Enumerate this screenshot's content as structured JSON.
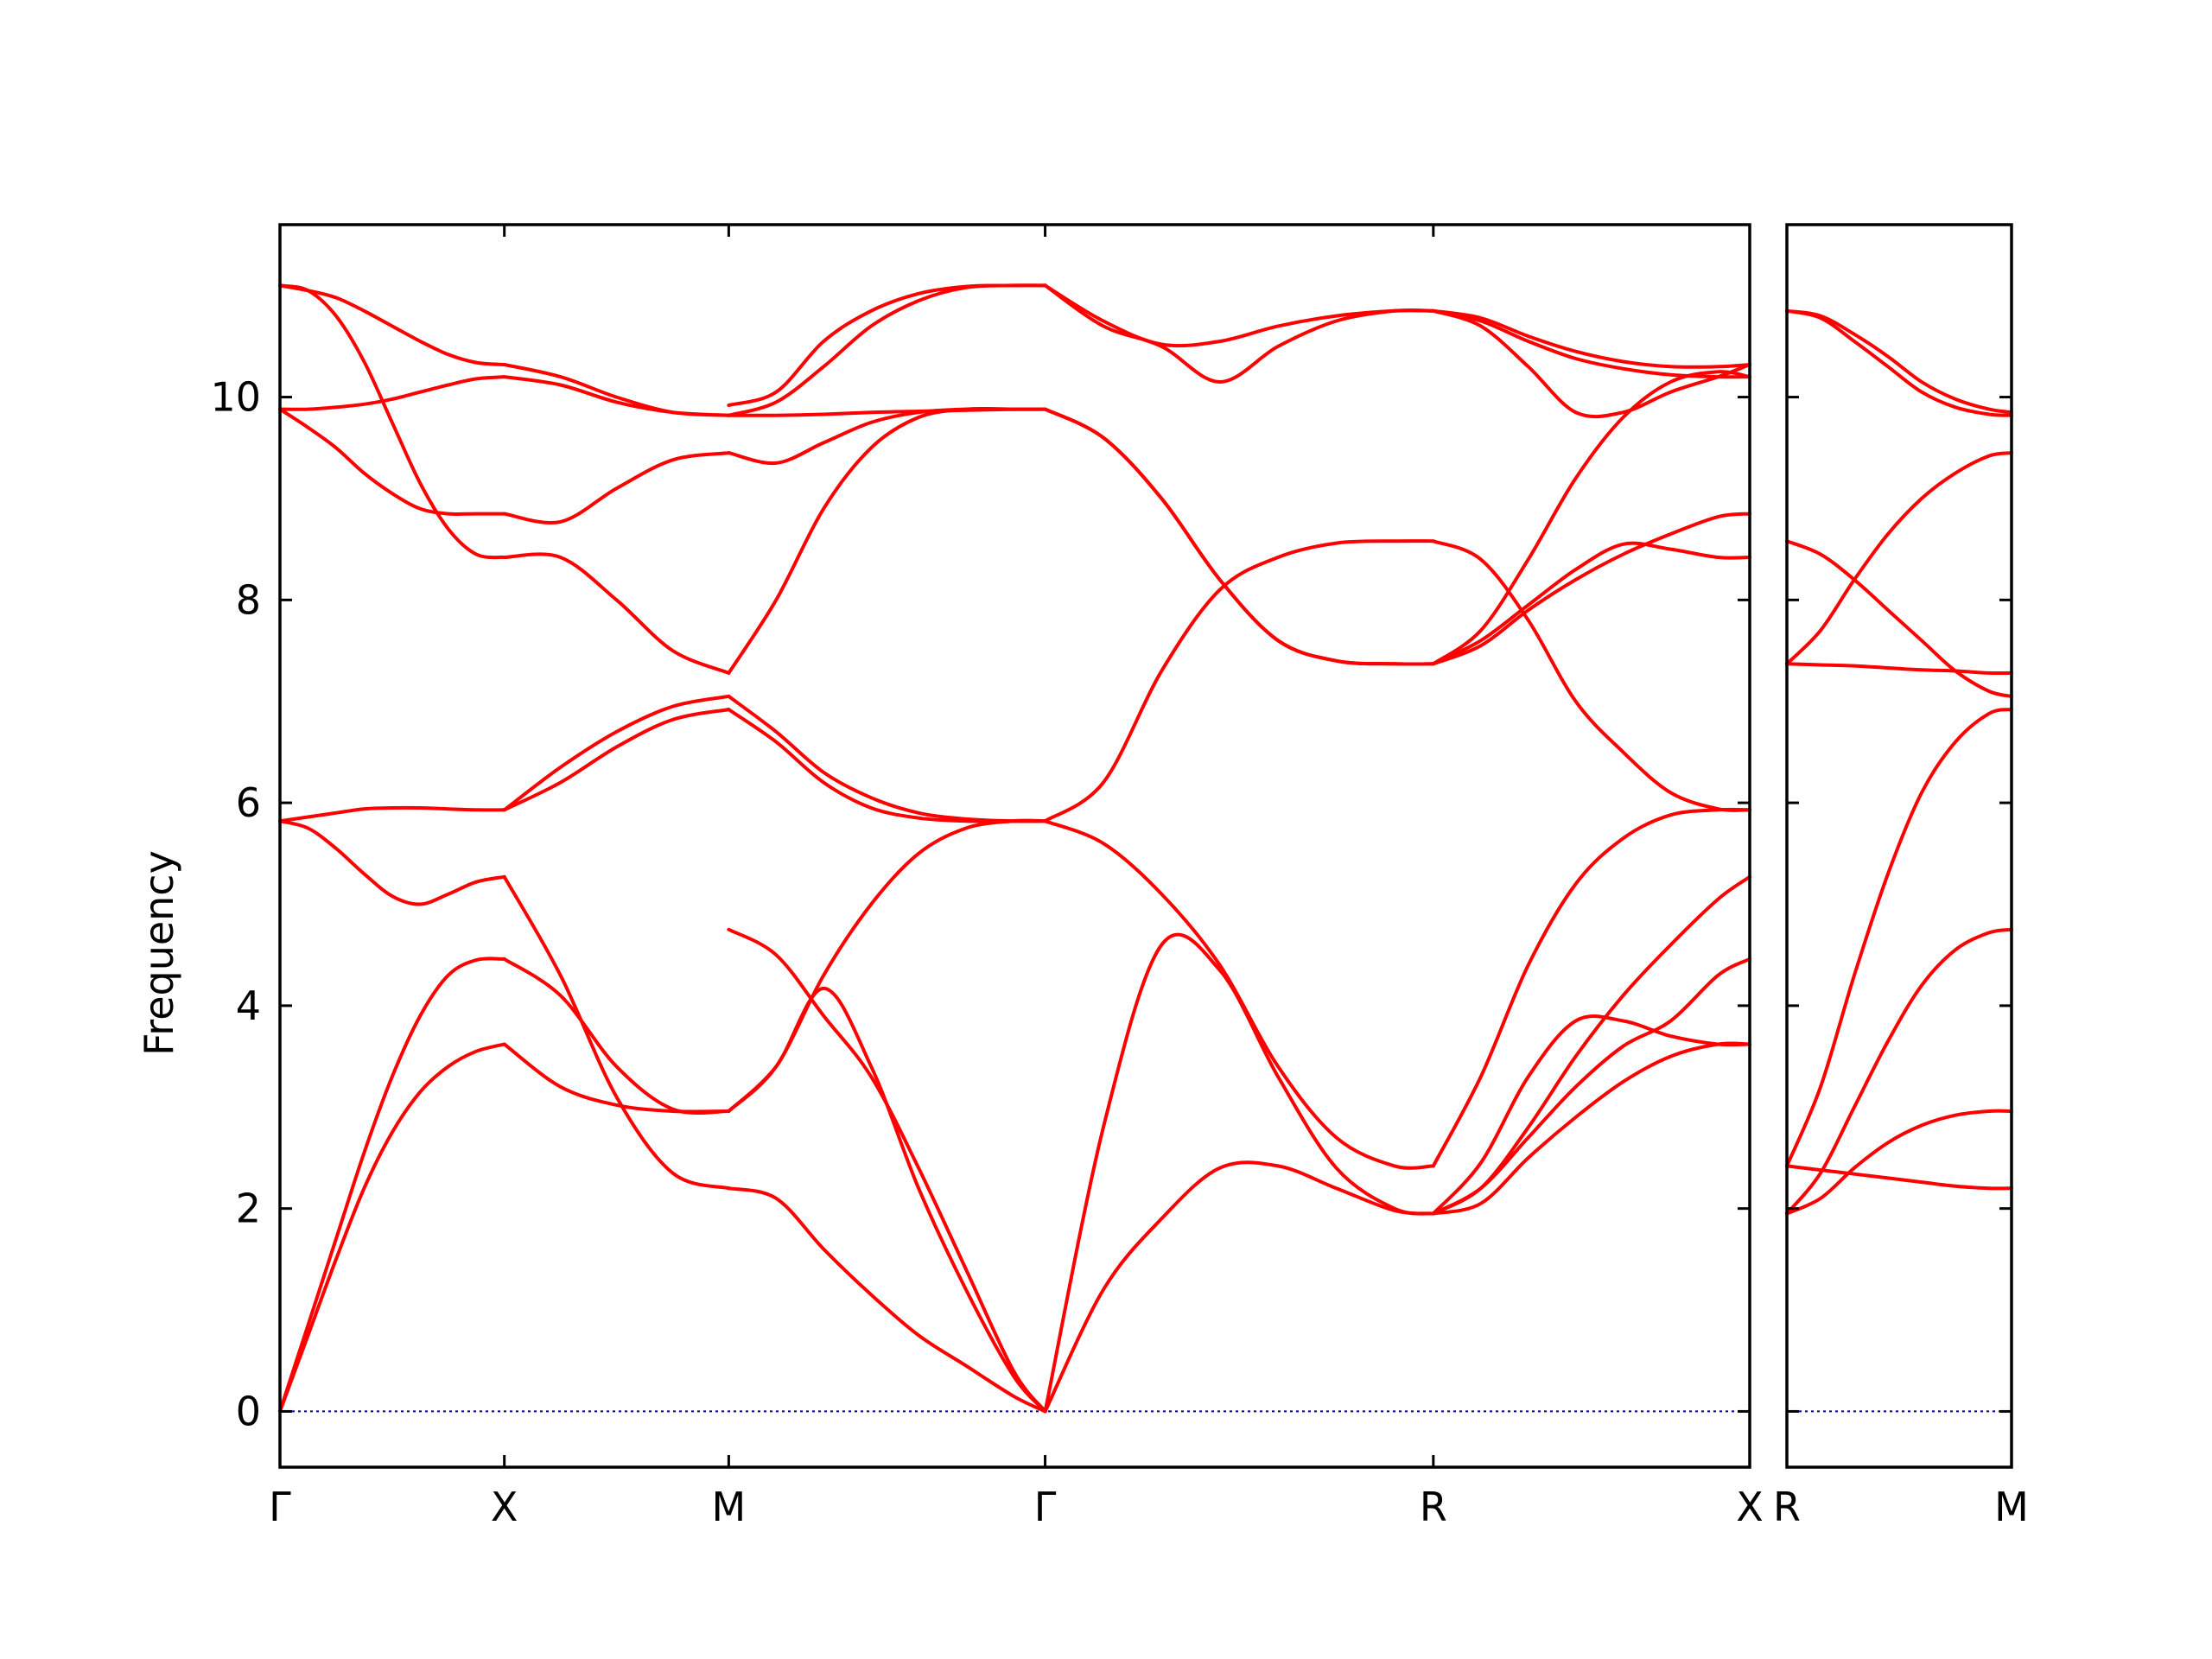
{
  "chart_data": {
    "type": "line",
    "ylabel": "Frequency",
    "ylim": [
      -0.55,
      11.7
    ],
    "yticks": [
      0,
      2,
      4,
      6,
      8,
      10
    ],
    "grid": false,
    "band_color": "#ff0000",
    "zero_line_color": "#00008b",
    "panels": [
      {
        "path_labels": [
          "Γ",
          "X",
          "M",
          "Γ",
          "R",
          "X"
        ],
        "segments": [
          {
            "from": "Γ",
            "to": "X",
            "x": [
              0,
              0.125,
              0.25,
              0.375,
              0.5,
              0.625,
              0.75,
              0.875,
              1
            ],
            "bands": [
              [
                0.0,
                0.75,
                1.5,
                2.2,
                2.75,
                3.15,
                3.4,
                3.55,
                3.62
              ],
              [
                0.0,
                0.85,
                1.7,
                2.55,
                3.3,
                3.9,
                4.3,
                4.45,
                4.46
              ],
              [
                5.82,
                5.75,
                5.55,
                5.3,
                5.08,
                5.0,
                5.1,
                5.22,
                5.27
              ],
              [
                5.82,
                5.86,
                5.9,
                5.94,
                5.95,
                5.95,
                5.94,
                5.93,
                5.93
              ],
              [
                9.88,
                9.7,
                9.5,
                9.25,
                9.05,
                8.9,
                8.85,
                8.85,
                8.85
              ],
              [
                9.88,
                9.88,
                9.9,
                9.93,
                9.98,
                10.05,
                10.12,
                10.18,
                10.2
              ],
              [
                11.1,
                11.05,
                10.8,
                10.35,
                9.75,
                9.15,
                8.7,
                8.45,
                8.42
              ],
              [
                11.1,
                11.05,
                10.98,
                10.85,
                10.7,
                10.55,
                10.42,
                10.34,
                10.32
              ]
            ]
          },
          {
            "from": "X",
            "to": "M",
            "x": [
              0,
              0.25,
              0.5,
              0.75,
              1
            ],
            "bands": [
              [
                3.62,
                3.2,
                3.02,
                2.96,
                2.96
              ],
              [
                4.46,
                4.1,
                3.4,
                2.98,
                2.96
              ],
              [
                5.27,
                4.3,
                3.1,
                2.35,
                2.2
              ],
              [
                5.93,
                6.35,
                6.7,
                6.95,
                7.05
              ],
              [
                5.93,
                6.2,
                6.55,
                6.82,
                6.92
              ],
              [
                8.42,
                8.42,
                8.0,
                7.5,
                7.28
              ],
              [
                8.85,
                8.77,
                9.1,
                9.38,
                9.45
              ],
              [
                10.2,
                10.12,
                9.95,
                9.85,
                9.82
              ],
              [
                10.32,
                10.2,
                10.0,
                9.85,
                9.82
              ]
            ]
          },
          {
            "from": "M",
            "to": "Γ",
            "x": [
              0,
              0.15,
              0.3,
              0.45,
              0.6,
              0.75,
              0.9,
              1
            ],
            "bands": [
              [
                2.2,
                2.1,
                1.6,
                1.15,
                0.75,
                0.45,
                0.15,
                0.0
              ],
              [
                2.96,
                3.4,
                4.17,
                3.4,
                2.2,
                1.2,
                0.35,
                0.0
              ],
              [
                4.75,
                4.5,
                3.9,
                3.3,
                2.4,
                1.4,
                0.4,
                0.0
              ],
              [
                2.96,
                3.4,
                4.3,
                5.0,
                5.5,
                5.75,
                5.82,
                5.82
              ],
              [
                6.92,
                6.6,
                6.2,
                5.95,
                5.85,
                5.82,
                5.82,
                5.82
              ],
              [
                7.05,
                6.7,
                6.3,
                6.05,
                5.9,
                5.84,
                5.82,
                5.82
              ],
              [
                7.28,
                8.0,
                8.9,
                9.5,
                9.8,
                9.88,
                9.88,
                9.88
              ],
              [
                9.45,
                9.35,
                9.55,
                9.75,
                9.85,
                9.88,
                9.88,
                9.88
              ],
              [
                9.82,
                9.82,
                9.83,
                9.85,
                9.86,
                9.87,
                9.88,
                9.88
              ],
              [
                9.82,
                9.95,
                10.3,
                10.7,
                10.95,
                11.08,
                11.1,
                11.1
              ],
              [
                9.92,
                10.05,
                10.55,
                10.85,
                11.02,
                11.09,
                11.1,
                11.1
              ]
            ]
          },
          {
            "from": "Γ",
            "to": "R",
            "x": [
              0,
              0.15,
              0.3,
              0.45,
              0.6,
              0.75,
              0.9,
              1
            ],
            "bands": [
              [
                0.0,
                1.2,
                1.9,
                2.4,
                2.42,
                2.2,
                1.98,
                1.95
              ],
              [
                0.0,
                2.8,
                4.6,
                4.35,
                3.3,
                2.4,
                2.0,
                1.95
              ],
              [
                5.82,
                5.6,
                5.1,
                4.4,
                3.4,
                2.7,
                2.42,
                2.42
              ],
              [
                5.82,
                6.2,
                7.3,
                8.1,
                8.42,
                8.56,
                8.58,
                8.58
              ],
              [
                9.88,
                9.6,
                9.0,
                8.2,
                7.6,
                7.4,
                7.37,
                7.37
              ],
              [
                9.88,
                9.6,
                9.0,
                8.2,
                7.6,
                7.4,
                7.37,
                7.37
              ],
              [
                11.1,
                10.7,
                10.5,
                10.15,
                10.5,
                10.75,
                10.85,
                10.85
              ],
              [
                11.1,
                10.75,
                10.52,
                10.55,
                10.7,
                10.8,
                10.85,
                10.85
              ]
            ]
          },
          {
            "from": "R",
            "to": "X",
            "x": [
              0,
              0.15,
              0.3,
              0.45,
              0.6,
              0.75,
              0.9,
              1
            ],
            "bands": [
              [
                1.95,
                2.05,
                2.5,
                2.9,
                3.25,
                3.5,
                3.62,
                3.62
              ],
              [
                1.95,
                2.2,
                2.7,
                3.2,
                3.6,
                3.85,
                4.3,
                4.46
              ],
              [
                1.95,
                2.45,
                3.3,
                3.85,
                3.85,
                3.7,
                3.62,
                3.62
              ],
              [
                2.42,
                3.3,
                4.4,
                5.2,
                5.65,
                5.88,
                5.93,
                5.93
              ],
              [
                1.95,
                2.2,
                2.8,
                3.5,
                4.1,
                4.6,
                5.05,
                5.27
              ],
              [
                8.58,
                8.4,
                7.8,
                7.0,
                6.5,
                6.1,
                5.94,
                5.93
              ],
              [
                7.37,
                7.6,
                7.95,
                8.3,
                8.55,
                8.5,
                8.42,
                8.42
              ],
              [
                7.37,
                7.55,
                7.9,
                8.2,
                8.45,
                8.65,
                8.82,
                8.85
              ],
              [
                7.37,
                7.7,
                8.4,
                9.2,
                9.8,
                10.15,
                10.25,
                10.2
              ],
              [
                10.85,
                10.7,
                10.3,
                9.85,
                9.85,
                10.05,
                10.2,
                10.32
              ],
              [
                10.85,
                10.78,
                10.6,
                10.45,
                10.35,
                10.3,
                10.3,
                10.32
              ],
              [
                10.85,
                10.75,
                10.55,
                10.38,
                10.28,
                10.22,
                10.2,
                10.2
              ]
            ]
          }
        ]
      },
      {
        "path_labels": [
          "R",
          "M"
        ],
        "segments": [
          {
            "from": "R",
            "to": "M",
            "x": [
              0,
              0.15,
              0.3,
              0.45,
              0.6,
              0.75,
              0.9,
              1
            ],
            "bands": [
              [
                2.42,
                2.38,
                2.34,
                2.3,
                2.26,
                2.22,
                2.2,
                2.2
              ],
              [
                1.95,
                2.1,
                2.4,
                2.65,
                2.82,
                2.92,
                2.96,
                2.96
              ],
              [
                1.95,
                2.35,
                3.0,
                3.65,
                4.2,
                4.55,
                4.72,
                4.75
              ],
              [
                2.42,
                3.2,
                4.3,
                5.3,
                6.1,
                6.6,
                6.88,
                6.92
              ],
              [
                8.58,
                8.45,
                8.2,
                7.9,
                7.6,
                7.3,
                7.1,
                7.05
              ],
              [
                7.37,
                7.36,
                7.35,
                7.33,
                7.31,
                7.3,
                7.28,
                7.28
              ],
              [
                7.37,
                7.7,
                8.2,
                8.65,
                9.0,
                9.25,
                9.42,
                9.45
              ],
              [
                10.85,
                10.78,
                10.55,
                10.3,
                10.05,
                9.9,
                9.83,
                9.82
              ],
              [
                10.85,
                10.8,
                10.62,
                10.4,
                10.15,
                9.98,
                9.88,
                9.85
              ]
            ]
          }
        ]
      }
    ]
  }
}
